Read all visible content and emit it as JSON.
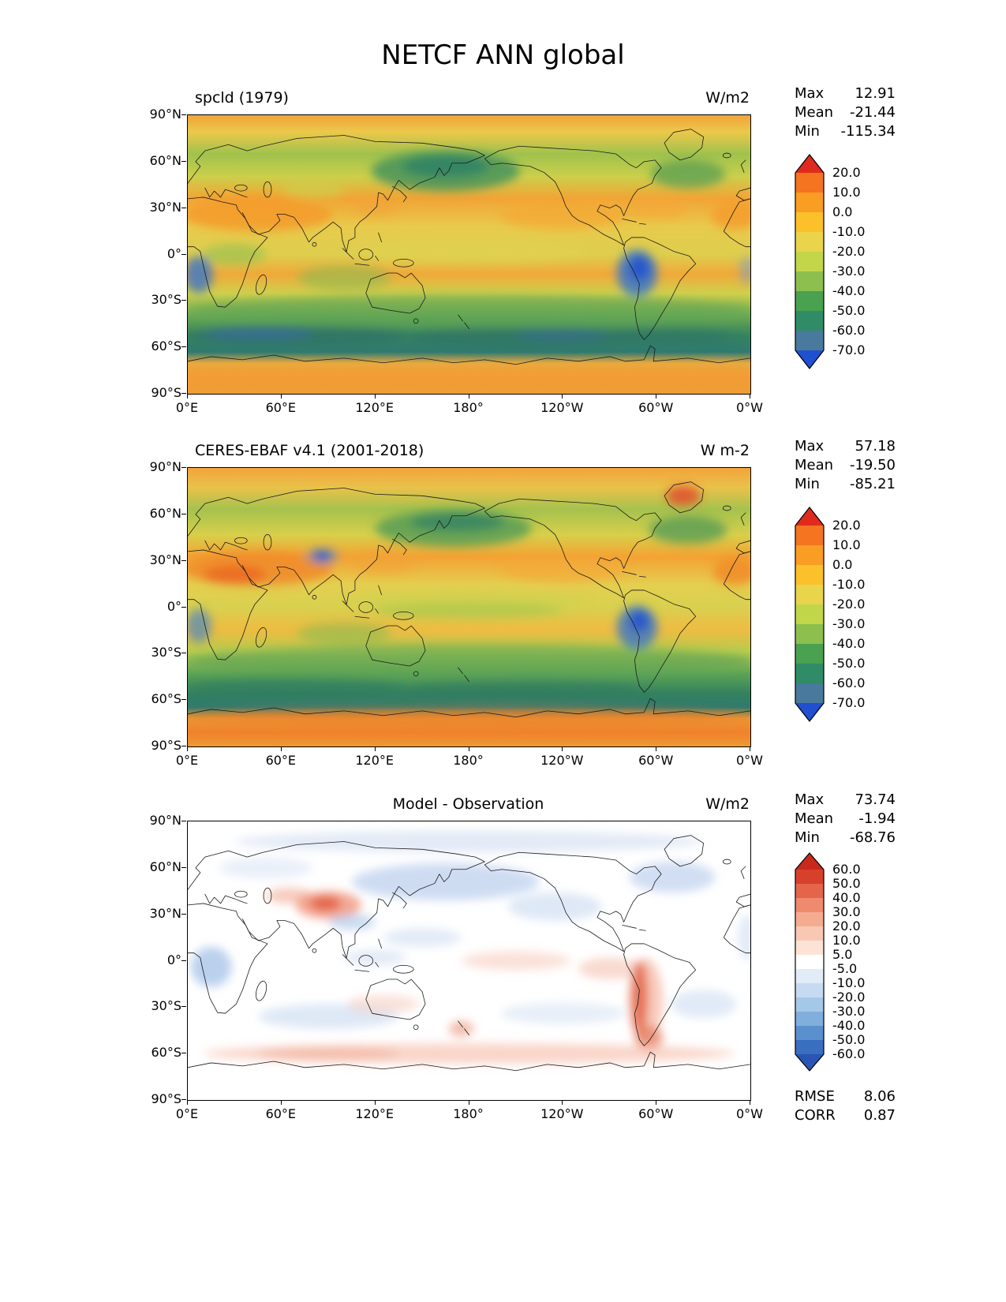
{
  "title": "NETCF ANN global",
  "axes": {
    "xticks": [
      "0°E",
      "60°E",
      "120°E",
      "180°",
      "120°W",
      "60°W",
      "0°W"
    ],
    "yticks": [
      "90°N",
      "60°N",
      "30°N",
      "0°",
      "30°S",
      "60°S",
      "90°S"
    ]
  },
  "panels": [
    {
      "id": "model",
      "title": "spcld (1979)",
      "units": "W/m2",
      "stats": [
        {
          "label": "Max",
          "value": "12.91"
        },
        {
          "label": "Mean",
          "value": "-21.44"
        },
        {
          "label": "Min",
          "value": "-115.34"
        }
      ],
      "colorbar": {
        "ticks": [
          "20.0",
          "10.0",
          "0.0",
          "-10.0",
          "-20.0",
          "-30.0",
          "-40.0",
          "-50.0",
          "-60.0",
          "-70.0"
        ],
        "colors": [
          "#f4741f",
          "#f99e23",
          "#fbc02a",
          "#e9d44b",
          "#c2d64a",
          "#8dbf4f",
          "#4aa14f",
          "#2f8c66",
          "#49799c"
        ],
        "arrow_top": "#e02a1d",
        "arrow_bottom": "#2050d0",
        "seg_h": 25,
        "arrow_h": 24
      }
    },
    {
      "id": "obs",
      "title": "CERES-EBAF v4.1 (2001-2018)",
      "units": "W m-2",
      "stats": [
        {
          "label": "Max",
          "value": "57.18"
        },
        {
          "label": "Mean",
          "value": "-19.50"
        },
        {
          "label": "Min",
          "value": "-85.21"
        }
      ],
      "colorbar": {
        "ticks": [
          "20.0",
          "10.0",
          "0.0",
          "-10.0",
          "-20.0",
          "-30.0",
          "-40.0",
          "-50.0",
          "-60.0",
          "-70.0"
        ],
        "colors": [
          "#f4741f",
          "#f99e23",
          "#fbc02a",
          "#e9d44b",
          "#c2d64a",
          "#8dbf4f",
          "#4aa14f",
          "#2f8c66",
          "#49799c"
        ],
        "arrow_top": "#e02a1d",
        "arrow_bottom": "#2050d0",
        "seg_h": 25,
        "arrow_h": 24
      }
    },
    {
      "id": "diff",
      "title": "Model - Observation",
      "units": "W/m2",
      "stats": [
        {
          "label": "Max",
          "value": "73.74"
        },
        {
          "label": "Mean",
          "value": "-1.94"
        },
        {
          "label": "Min",
          "value": "-68.76"
        }
      ],
      "extra_stats": [
        {
          "label": "RMSE",
          "value": "8.06"
        },
        {
          "label": "CORR",
          "value": "0.87"
        }
      ],
      "colorbar": {
        "ticks": [
          "60.0",
          "50.0",
          "40.0",
          "30.0",
          "20.0",
          "10.0",
          "5.0",
          "-5.0",
          "-10.0",
          "-20.0",
          "-30.0",
          "-40.0",
          "-50.0",
          "-60.0"
        ],
        "colors": [
          "#d7402b",
          "#e4654a",
          "#ee8a6d",
          "#f5ab90",
          "#f9c8b4",
          "#fde3d6",
          "#ffffff",
          "#e1ecf7",
          "#c6dbf1",
          "#a6c8e8",
          "#82aedd",
          "#5b90cf",
          "#3a6fc0"
        ],
        "arrow_top": "#c9281c",
        "arrow_bottom": "#2a55b5",
        "seg_h": 18,
        "arrow_h": 22
      }
    }
  ],
  "chart_data": [
    {
      "type": "heatmap",
      "title": "spcld (1979)",
      "units": "W/m2",
      "xlabel_ticks": [
        "0°E",
        "60°E",
        "120°E",
        "180°",
        "120°W",
        "60°W",
        "0°W"
      ],
      "ylabel_ticks": [
        "90°N",
        "60°N",
        "30°N",
        "0°",
        "30°S",
        "60°S",
        "90°S"
      ],
      "levels": [
        -70,
        -60,
        -50,
        -40,
        -30,
        -20,
        -10,
        0,
        10,
        20
      ],
      "stats": {
        "max": 12.91,
        "mean": -21.44,
        "min": -115.34
      }
    },
    {
      "type": "heatmap",
      "title": "CERES-EBAF v4.1 (2001-2018)",
      "units": "W m-2",
      "xlabel_ticks": [
        "0°E",
        "60°E",
        "120°E",
        "180°",
        "120°W",
        "60°W",
        "0°W"
      ],
      "ylabel_ticks": [
        "90°N",
        "60°N",
        "30°N",
        "0°",
        "30°S",
        "60°S",
        "90°S"
      ],
      "levels": [
        -70,
        -60,
        -50,
        -40,
        -30,
        -20,
        -10,
        0,
        10,
        20
      ],
      "stats": {
        "max": 57.18,
        "mean": -19.5,
        "min": -85.21
      }
    },
    {
      "type": "heatmap",
      "title": "Model - Observation",
      "units": "W/m2",
      "xlabel_ticks": [
        "0°E",
        "60°E",
        "120°E",
        "180°",
        "120°W",
        "60°W",
        "0°W"
      ],
      "ylabel_ticks": [
        "90°N",
        "60°N",
        "30°N",
        "0°",
        "30°S",
        "60°S",
        "90°S"
      ],
      "levels": [
        -60,
        -50,
        -40,
        -30,
        -20,
        -10,
        -5,
        5,
        10,
        20,
        30,
        40,
        50,
        60
      ],
      "stats": {
        "max": 73.74,
        "mean": -1.94,
        "min": -68.76,
        "rmse": 8.06,
        "corr": 0.87
      }
    }
  ]
}
